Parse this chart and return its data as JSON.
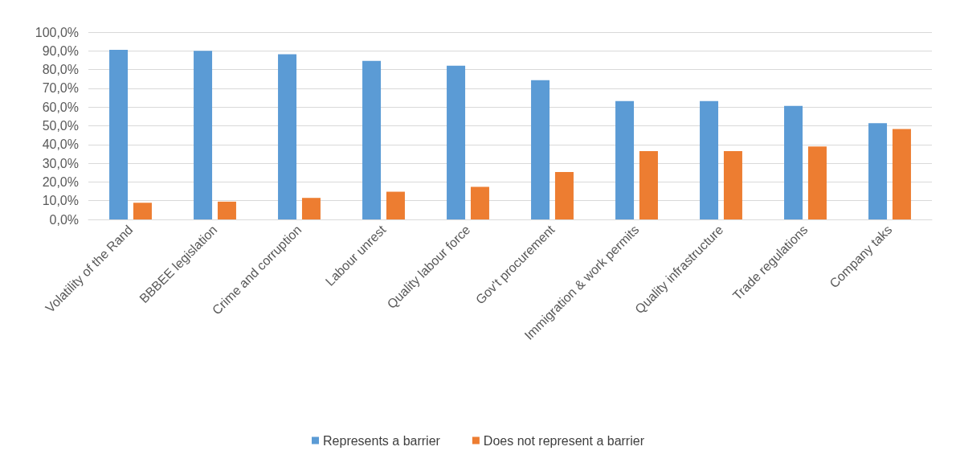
{
  "chart_data": {
    "type": "bar",
    "categories": [
      "Volatility of the Rand",
      "BBBEE legislation",
      "Crime and corruption",
      "Labour unrest",
      "Quality labour force",
      "Gov't procurement",
      "Immigration & work permits",
      "Quality infrastructure",
      "Trade regulations",
      "Company taks"
    ],
    "series": [
      {
        "name": "Represents a barrier",
        "color": "#5b9bd5",
        "values": [
          90.6,
          90.0,
          88.2,
          84.7,
          82.1,
          74.4,
          63.2,
          63.2,
          60.6,
          51.4
        ]
      },
      {
        "name": "Does not represent a barrier",
        "color": "#ed7d31",
        "values": [
          8.9,
          9.5,
          11.5,
          14.8,
          17.4,
          25.3,
          36.5,
          36.5,
          38.9,
          48.3
        ]
      }
    ],
    "ylim": [
      0,
      100
    ],
    "yticks": [
      {
        "value": 0,
        "label": "0,0%"
      },
      {
        "value": 10,
        "label": "10,0%"
      },
      {
        "value": 20,
        "label": "20,0%"
      },
      {
        "value": 30,
        "label": "30,0%"
      },
      {
        "value": 40,
        "label": "40,0%"
      },
      {
        "value": 50,
        "label": "50,0%"
      },
      {
        "value": 60,
        "label": "60,0%"
      },
      {
        "value": 70,
        "label": "70,0%"
      },
      {
        "value": 80,
        "label": "80,0%"
      },
      {
        "value": 90,
        "label": "90,0%"
      },
      {
        "value": 100,
        "label": "100,0%"
      }
    ],
    "grid": "y",
    "legend": "bottom"
  }
}
